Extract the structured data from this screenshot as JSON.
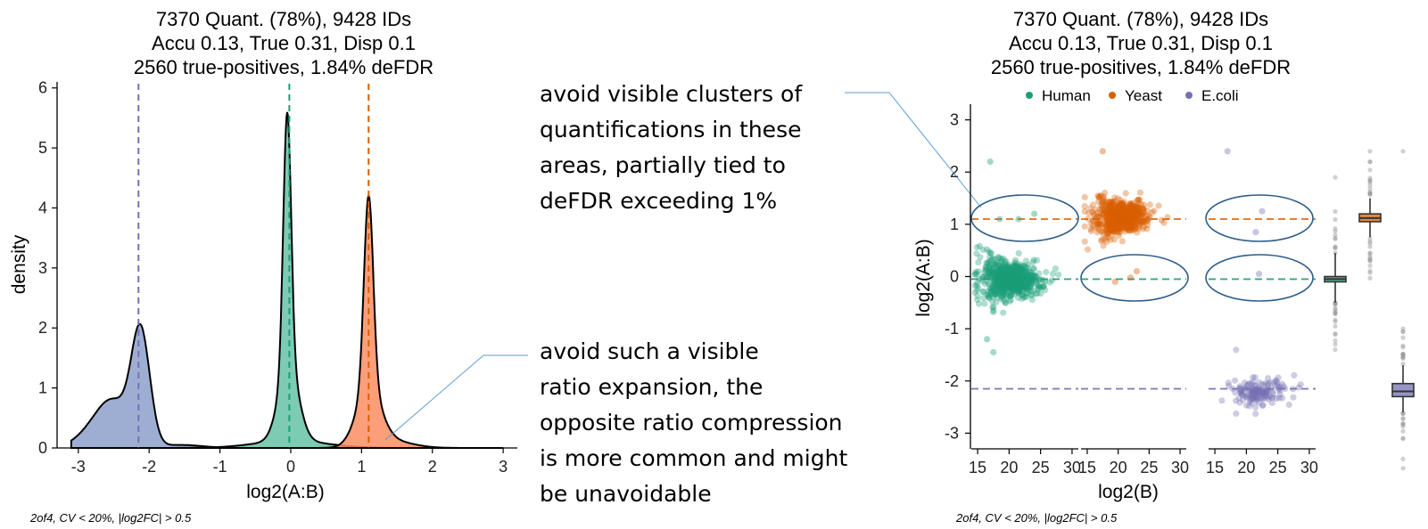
{
  "colors": {
    "human": "#1b9e77",
    "yeast": "#d95f02",
    "ecoli": "#7570b3",
    "human_fill": "#66c2a5",
    "yeast_fill": "#fc8d62",
    "ecoli_fill": "#8da0cb",
    "callout_line": "#5b9bd5",
    "ellipse": "#2e5d8a",
    "outlier": "#999999"
  },
  "chart_data": [
    {
      "type": "area",
      "title": [
        "7370 Quant. (78%), 9428 IDs",
        "Accu 0.13, True 0.31, Disp 0.1",
        "2560 true-positives, 1.84% deFDR"
      ],
      "xlabel": "log2(A:B)",
      "ylabel": "density",
      "xlim": [
        -3.3,
        3.2
      ],
      "ylim": [
        0,
        6.1
      ],
      "xticks": [
        -3,
        -2,
        -1,
        0,
        1,
        2,
        3
      ],
      "yticks": [
        0,
        1,
        2,
        3,
        4,
        5,
        6
      ],
      "expected_lines": [
        {
          "species": "E.coli",
          "x": -2.15
        },
        {
          "species": "Human",
          "x": -0.02
        },
        {
          "species": "Yeast",
          "x": 1.1
        }
      ],
      "series": [
        {
          "name": "E.coli",
          "peak_x": -2.12,
          "peak_density": 2.18,
          "shoulder_x": -2.55,
          "shoulder_density": 0.8
        },
        {
          "name": "Human",
          "peak_x": -0.05,
          "peak_density": 5.58
        },
        {
          "name": "Yeast",
          "peak_x": 1.1,
          "peak_density": 4.25
        }
      ],
      "footnote": "2of4, CV < 20%, |log2FC| > 0.5"
    },
    {
      "type": "scatter",
      "title": [
        "7370 Quant. (78%), 9428 IDs",
        "Accu 0.13, True 0.31, Disp 0.1",
        "2560 true-positives, 1.84% deFDR"
      ],
      "xlabel": "log2(B)",
      "ylabel": "log2(A:B)",
      "legend": [
        "Human",
        "Yeast",
        "E.coli"
      ],
      "legend_position": "top",
      "ylim": [
        -3.3,
        3.3
      ],
      "yticks": [
        -3,
        -2,
        -1,
        0,
        1,
        2,
        3
      ],
      "panels": [
        {
          "xlim": [
            14,
            31
          ],
          "xticks": [
            15,
            20,
            25,
            30
          ]
        },
        {
          "xlim": [
            14,
            31
          ],
          "xticks": [
            15,
            20,
            25,
            30
          ]
        },
        {
          "xlim": [
            14,
            31
          ],
          "xticks": [
            15,
            20,
            25,
            30
          ]
        }
      ],
      "reference_lines": [
        {
          "species": "Yeast",
          "y": 1.1
        },
        {
          "species": "Human",
          "y": -0.05
        },
        {
          "species": "E.coli",
          "y": -2.15
        }
      ],
      "clusters": [
        {
          "panel": 1,
          "species": "Human",
          "center_x": 20,
          "center_y": -0.05,
          "spread": 0.35,
          "n": 700
        },
        {
          "panel": 2,
          "species": "Yeast",
          "center_x": 20.5,
          "center_y": 1.15,
          "spread": 0.3,
          "n": 600
        },
        {
          "panel": 3,
          "species": "E.coli",
          "center_x": 22,
          "center_y": -2.2,
          "spread": 0.3,
          "n": 150
        }
      ],
      "boxplots": [
        {
          "species": "Human",
          "q1": -0.09,
          "median": -0.05,
          "q3": 0.0,
          "whisker_low": -0.5,
          "whisker_high": 0.45
        },
        {
          "species": "Yeast",
          "q1": 1.05,
          "median": 1.12,
          "q3": 1.2,
          "whisker_low": 0.75,
          "whisker_high": 1.5
        },
        {
          "species": "E.coli",
          "q1": -2.3,
          "median": -2.2,
          "q3": -2.05,
          "whisker_low": -2.6,
          "whisker_high": -1.7
        }
      ],
      "footnote": "2of4, CV < 20%, |log2FC| > 0.5"
    }
  ],
  "annotations": {
    "note_top": [
      "avoid visible clusters of",
      "quantifications in these",
      "areas, partially tied to",
      "deFDR exceeding 1%"
    ],
    "note_bottom": [
      "avoid such a visible",
      "ratio expansion, the",
      "opposite ratio compression",
      "is more common and might",
      "be unavoidable"
    ]
  }
}
